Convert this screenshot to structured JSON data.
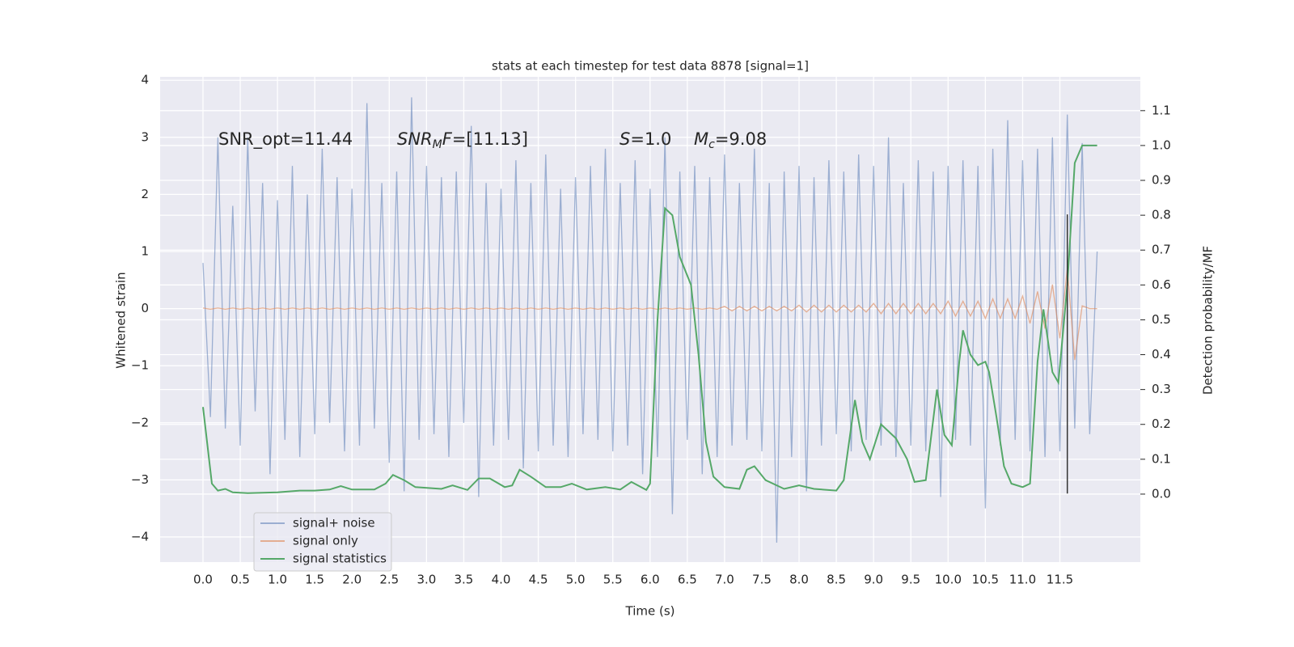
{
  "chart_data": {
    "type": "line",
    "title": "stats at each timestep for test data 8878 [signal=1]",
    "xlabel": "Time (s)",
    "ylabel": "Whitened strain",
    "y2label": "Detection probability/MF",
    "annotations": [
      [
        {
          "text": "SNR_opt=11.44"
        }
      ],
      [
        {
          "text": "SNR",
          "italic": true
        },
        {
          "text": "M",
          "italic": true,
          "sub": true
        },
        {
          "text": "F",
          "italic": true
        },
        {
          "text": "=[11.13]"
        }
      ],
      [
        {
          "text": "S",
          "italic": true
        },
        {
          "text": "=1.0"
        }
      ],
      [
        {
          "text": "M",
          "italic": true
        },
        {
          "text": "c",
          "italic": true,
          "sub": true
        },
        {
          "text": "=9.08"
        }
      ]
    ],
    "xlim": [
      -0.575,
      12.58
    ],
    "ylim": [
      -4.44,
      4.06
    ],
    "y2lim": [
      -0.195,
      1.197
    ],
    "xticks": [
      {
        "value": 0,
        "label": "0.0"
      },
      {
        "value": 0.5,
        "label": "0.5"
      },
      {
        "value": 1,
        "label": "1.0"
      },
      {
        "value": 1.5,
        "label": "1.5"
      },
      {
        "value": 2,
        "label": "2.0"
      },
      {
        "value": 2.5,
        "label": "2.5"
      },
      {
        "value": 3,
        "label": "3.0"
      },
      {
        "value": 3.5,
        "label": "3.5"
      },
      {
        "value": 4,
        "label": "4.0"
      },
      {
        "value": 4.5,
        "label": "4.5"
      },
      {
        "value": 5,
        "label": "5.0"
      },
      {
        "value": 5.5,
        "label": "5.5"
      },
      {
        "value": 6,
        "label": "6.0"
      },
      {
        "value": 6.5,
        "label": "6.5"
      },
      {
        "value": 7,
        "label": "7.0"
      },
      {
        "value": 7.5,
        "label": "7.5"
      },
      {
        "value": 8,
        "label": "8.0"
      },
      {
        "value": 8.5,
        "label": "8.5"
      },
      {
        "value": 9,
        "label": "9.0"
      },
      {
        "value": 9.5,
        "label": "9.5"
      },
      {
        "value": 10,
        "label": "10.0"
      },
      {
        "value": 10.5,
        "label": "10.5"
      },
      {
        "value": 11,
        "label": "11.0"
      },
      {
        "value": 11.5,
        "label": "11.5"
      }
    ],
    "yticks": [
      {
        "value": -4,
        "label": "−4"
      },
      {
        "value": -3,
        "label": "−3"
      },
      {
        "value": -2,
        "label": "−2"
      },
      {
        "value": -1,
        "label": "−1"
      },
      0,
      1,
      2,
      3,
      4
    ],
    "y2ticks": [
      {
        "value": 0,
        "label": "0.0"
      },
      {
        "value": 0.1,
        "label": "0.1"
      },
      {
        "value": 0.2,
        "label": "0.2"
      },
      {
        "value": 0.3,
        "label": "0.3"
      },
      {
        "value": 0.4,
        "label": "0.4"
      },
      {
        "value": 0.5,
        "label": "0.5"
      },
      {
        "value": 0.6,
        "label": "0.6"
      },
      {
        "value": 0.7,
        "label": "0.7"
      },
      {
        "value": 0.8,
        "label": "0.8"
      },
      {
        "value": 0.9,
        "label": "0.9"
      },
      {
        "value": 1,
        "label": "1.0"
      },
      {
        "value": 1.1,
        "label": "1.1"
      }
    ],
    "grid": true,
    "legend": "lower left",
    "vline": {
      "x": 11.6,
      "ymin": -3.24,
      "ymax": 1.65,
      "color": "#333333"
    },
    "series": [
      {
        "name": "signal+ noise",
        "color": "#4c72b0",
        "opacity": 0.5,
        "x": [
          0,
          0.1,
          0.2,
          0.3,
          0.4,
          0.5,
          0.6,
          0.7,
          0.8,
          0.9,
          1,
          1.1,
          1.2,
          1.3,
          1.4,
          1.5,
          1.6,
          1.7,
          1.8,
          1.9,
          2,
          2.1,
          2.2,
          2.3,
          2.4,
          2.5,
          2.6,
          2.7,
          2.8,
          2.9,
          3,
          3.1,
          3.2,
          3.3,
          3.4,
          3.5,
          3.6,
          3.7,
          3.8,
          3.9,
          4,
          4.1,
          4.2,
          4.3,
          4.4,
          4.5,
          4.6,
          4.7,
          4.8,
          4.9,
          5,
          5.1,
          5.2,
          5.3,
          5.4,
          5.5,
          5.6,
          5.7,
          5.8,
          5.9,
          6,
          6.1,
          6.2,
          6.3,
          6.4,
          6.5,
          6.6,
          6.7,
          6.8,
          6.9,
          7,
          7.1,
          7.2,
          7.3,
          7.4,
          7.5,
          7.6,
          7.7,
          7.8,
          7.9,
          8,
          8.1,
          8.2,
          8.3,
          8.4,
          8.5,
          8.6,
          8.7,
          8.8,
          8.9,
          9,
          9.1,
          9.2,
          9.3,
          9.4,
          9.5,
          9.6,
          9.7,
          9.8,
          9.9,
          10,
          10.1,
          10.2,
          10.3,
          10.4,
          10.5,
          10.6,
          10.7,
          10.8,
          10.9,
          11,
          11.1,
          11.2,
          11.3,
          11.4,
          11.5,
          11.6,
          11.7,
          11.8,
          11.9,
          12
        ],
        "values": [
          0.8,
          -1.9,
          3.0,
          -2.1,
          1.8,
          -2.4,
          3.0,
          -1.8,
          2.2,
          -2.9,
          1.9,
          -2.3,
          2.5,
          -2.6,
          2.0,
          -2.2,
          2.8,
          -2.0,
          2.3,
          -2.5,
          2.1,
          -2.4,
          3.6,
          -2.1,
          2.2,
          -2.7,
          2.4,
          -3.2,
          3.7,
          -2.3,
          2.5,
          -2.2,
          2.3,
          -2.6,
          2.4,
          -2.0,
          3.2,
          -3.3,
          2.2,
          -2.4,
          2.1,
          -2.3,
          2.6,
          -2.8,
          2.2,
          -2.5,
          2.7,
          -2.4,
          2.1,
          -2.6,
          2.3,
          -2.2,
          2.5,
          -2.3,
          2.8,
          -2.5,
          2.2,
          -2.4,
          2.6,
          -2.9,
          2.1,
          -2.6,
          3.0,
          -3.6,
          2.4,
          -2.3,
          2.5,
          -2.9,
          2.3,
          -2.6,
          2.7,
          -2.4,
          2.2,
          -2.3,
          2.8,
          -2.5,
          2.2,
          -4.1,
          2.4,
          -2.6,
          2.5,
          -3.2,
          2.3,
          -2.4,
          2.6,
          -2.2,
          2.4,
          -2.5,
          2.7,
          -2.3,
          2.5,
          -2.4,
          3.0,
          -2.6,
          2.2,
          -2.4,
          2.6,
          -2.5,
          2.4,
          -3.3,
          2.5,
          -2.3,
          2.6,
          -2.4,
          2.5,
          -3.5,
          2.8,
          -2.4,
          3.3,
          -2.3,
          2.6,
          -2.5,
          2.8,
          -2.6,
          3.0,
          -2.5,
          3.4,
          -2.1,
          2.9,
          -2.2,
          1.0
        ]
      },
      {
        "name": "signal only",
        "color": "#dd8452",
        "opacity": 0.6,
        "x": [
          0,
          0.1,
          0.2,
          0.3,
          0.4,
          0.5,
          0.6,
          0.7,
          0.8,
          0.9,
          1,
          1.1,
          1.2,
          1.3,
          1.4,
          1.5,
          1.6,
          1.7,
          1.8,
          1.9,
          2,
          2.1,
          2.2,
          2.3,
          2.4,
          2.5,
          2.6,
          2.7,
          2.8,
          2.9,
          3,
          3.1,
          3.2,
          3.3,
          3.4,
          3.5,
          3.6,
          3.7,
          3.8,
          3.9,
          4,
          4.1,
          4.2,
          4.3,
          4.4,
          4.5,
          4.6,
          4.7,
          4.8,
          4.9,
          5,
          5.1,
          5.2,
          5.3,
          5.4,
          5.5,
          5.6,
          5.7,
          5.8,
          5.9,
          6,
          6.1,
          6.2,
          6.3,
          6.4,
          6.5,
          6.6,
          6.7,
          6.8,
          6.9,
          7,
          7.1,
          7.2,
          7.3,
          7.4,
          7.5,
          7.6,
          7.7,
          7.8,
          7.9,
          8,
          8.1,
          8.2,
          8.3,
          8.4,
          8.5,
          8.6,
          8.7,
          8.8,
          8.9,
          9,
          9.1,
          9.2,
          9.3,
          9.4,
          9.5,
          9.6,
          9.7,
          9.8,
          9.9,
          10,
          10.1,
          10.2,
          10.3,
          10.4,
          10.5,
          10.6,
          10.7,
          10.8,
          10.9,
          11,
          11.1,
          11.2,
          11.3,
          11.4,
          11.5,
          11.6,
          11.7,
          11.8,
          11.9,
          12
        ],
        "values": [
          0.01,
          -0.01,
          0.01,
          -0.01,
          0.01,
          -0.01,
          0.01,
          -0.01,
          0.01,
          -0.01,
          0.01,
          -0.01,
          0.01,
          -0.01,
          0.01,
          -0.01,
          0.01,
          -0.01,
          0.01,
          -0.01,
          0.01,
          -0.01,
          0.01,
          -0.01,
          0.01,
          -0.01,
          0.01,
          -0.01,
          0.01,
          -0.01,
          0.01,
          -0.01,
          0.01,
          -0.01,
          0.01,
          -0.01,
          0.01,
          -0.01,
          0.01,
          -0.01,
          0.01,
          -0.01,
          0.01,
          -0.01,
          0.01,
          -0.01,
          0.01,
          -0.01,
          0.01,
          -0.01,
          0.01,
          -0.01,
          0.01,
          -0.01,
          0.01,
          -0.01,
          0.01,
          -0.01,
          0.01,
          -0.01,
          0.01,
          -0.01,
          0.01,
          -0.01,
          0.01,
          -0.01,
          0.01,
          -0.01,
          0.01,
          -0.01,
          0.04,
          -0.04,
          0.04,
          -0.04,
          0.04,
          -0.04,
          0.04,
          -0.04,
          0.04,
          -0.04,
          0.06,
          -0.06,
          0.06,
          -0.06,
          0.06,
          -0.06,
          0.06,
          -0.06,
          0.06,
          -0.06,
          0.09,
          -0.09,
          0.09,
          -0.09,
          0.09,
          -0.09,
          0.09,
          -0.09,
          0.09,
          -0.09,
          0.13,
          -0.13,
          0.13,
          -0.13,
          0.13,
          -0.17,
          0.17,
          -0.17,
          0.17,
          -0.17,
          0.22,
          -0.26,
          0.3,
          -0.35,
          0.42,
          -0.52,
          0.7,
          -0.9,
          0.05,
          0,
          0
        ]
      },
      {
        "name": "signal statistics",
        "color": "#55a868",
        "opacity": 1,
        "axis": "y2",
        "x": [
          0,
          0.12,
          0.2,
          0.3,
          0.4,
          0.6,
          1.0,
          1.3,
          1.5,
          1.7,
          1.85,
          2.0,
          2.3,
          2.45,
          2.55,
          2.7,
          2.85,
          3.2,
          3.35,
          3.55,
          3.7,
          3.85,
          4.05,
          4.15,
          4.25,
          4.4,
          4.6,
          4.8,
          4.95,
          5.15,
          5.4,
          5.6,
          5.75,
          5.95,
          6.0,
          6.1,
          6.2,
          6.3,
          6.4,
          6.55,
          6.65,
          6.75,
          6.85,
          7.0,
          7.2,
          7.3,
          7.4,
          7.55,
          7.8,
          8.0,
          8.2,
          8.5,
          8.6,
          8.75,
          8.85,
          8.95,
          9.1,
          9.3,
          9.45,
          9.55,
          9.7,
          9.85,
          9.95,
          10.05,
          10.15,
          10.2,
          10.3,
          10.4,
          10.5,
          10.55,
          10.65,
          10.75,
          10.85,
          11.0,
          11.1,
          11.2,
          11.28,
          11.4,
          11.48,
          11.6,
          11.7,
          11.8,
          11.9,
          12.0
        ],
        "values": [
          0.25,
          0.03,
          0.01,
          0.015,
          0.005,
          0.003,
          0.005,
          0.01,
          0.01,
          0.013,
          0.023,
          0.013,
          0.013,
          0.03,
          0.055,
          0.04,
          0.02,
          0.015,
          0.025,
          0.012,
          0.045,
          0.045,
          0.02,
          0.025,
          0.07,
          0.05,
          0.02,
          0.02,
          0.03,
          0.013,
          0.02,
          0.013,
          0.035,
          0.012,
          0.03,
          0.5,
          0.82,
          0.8,
          0.68,
          0.6,
          0.4,
          0.15,
          0.05,
          0.02,
          0.015,
          0.07,
          0.08,
          0.04,
          0.015,
          0.025,
          0.015,
          0.01,
          0.04,
          0.27,
          0.15,
          0.1,
          0.2,
          0.16,
          0.1,
          0.035,
          0.04,
          0.3,
          0.17,
          0.14,
          0.38,
          0.47,
          0.4,
          0.37,
          0.38,
          0.35,
          0.22,
          0.08,
          0.03,
          0.02,
          0.03,
          0.38,
          0.53,
          0.35,
          0.32,
          0.6,
          0.95,
          1.0,
          1.0,
          1.0
        ]
      }
    ]
  }
}
